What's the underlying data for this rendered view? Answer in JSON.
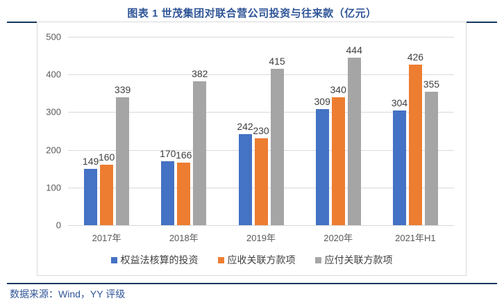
{
  "title": "图表 1 世茂集团对联合营公司投资与往来款（亿元）",
  "source": {
    "text": "数据来源：Wind，YY 评级"
  },
  "colors": {
    "title_text": "#2F5597",
    "source_text": "#2F5597",
    "rule": "#17375E",
    "chart_border": "#D9D9D9",
    "gridline": "#D9D9D9",
    "axis_tick_text": "#595959",
    "value_label_text": "#404040",
    "series_blue": "#4472C4",
    "series_orange": "#ED7D31",
    "series_gray": "#A5A5A5"
  },
  "chart_data": {
    "type": "bar",
    "title": "图表 1 世茂集团对联合营公司投资与往来款（亿元）",
    "categories": [
      "2017年",
      "2018年",
      "2019年",
      "2020年",
      "2021年H1"
    ],
    "series": [
      {
        "name": "权益法核算的投资",
        "color": "#4472C4",
        "values": [
          149,
          170,
          242,
          309,
          304
        ]
      },
      {
        "name": "应收关联方款项",
        "color": "#ED7D31",
        "values": [
          160,
          166,
          230,
          340,
          426
        ]
      },
      {
        "name": "应付关联方款项",
        "color": "#A5A5A5",
        "values": [
          339,
          382,
          415,
          444,
          355
        ]
      }
    ],
    "xlabel": "",
    "ylabel": "",
    "ylim": [
      0,
      500
    ],
    "ytick_step": 100,
    "yticks": [
      0,
      100,
      200,
      300,
      400,
      500
    ],
    "grid": true,
    "legend_position": "bottom",
    "value_labels_shown": true
  }
}
